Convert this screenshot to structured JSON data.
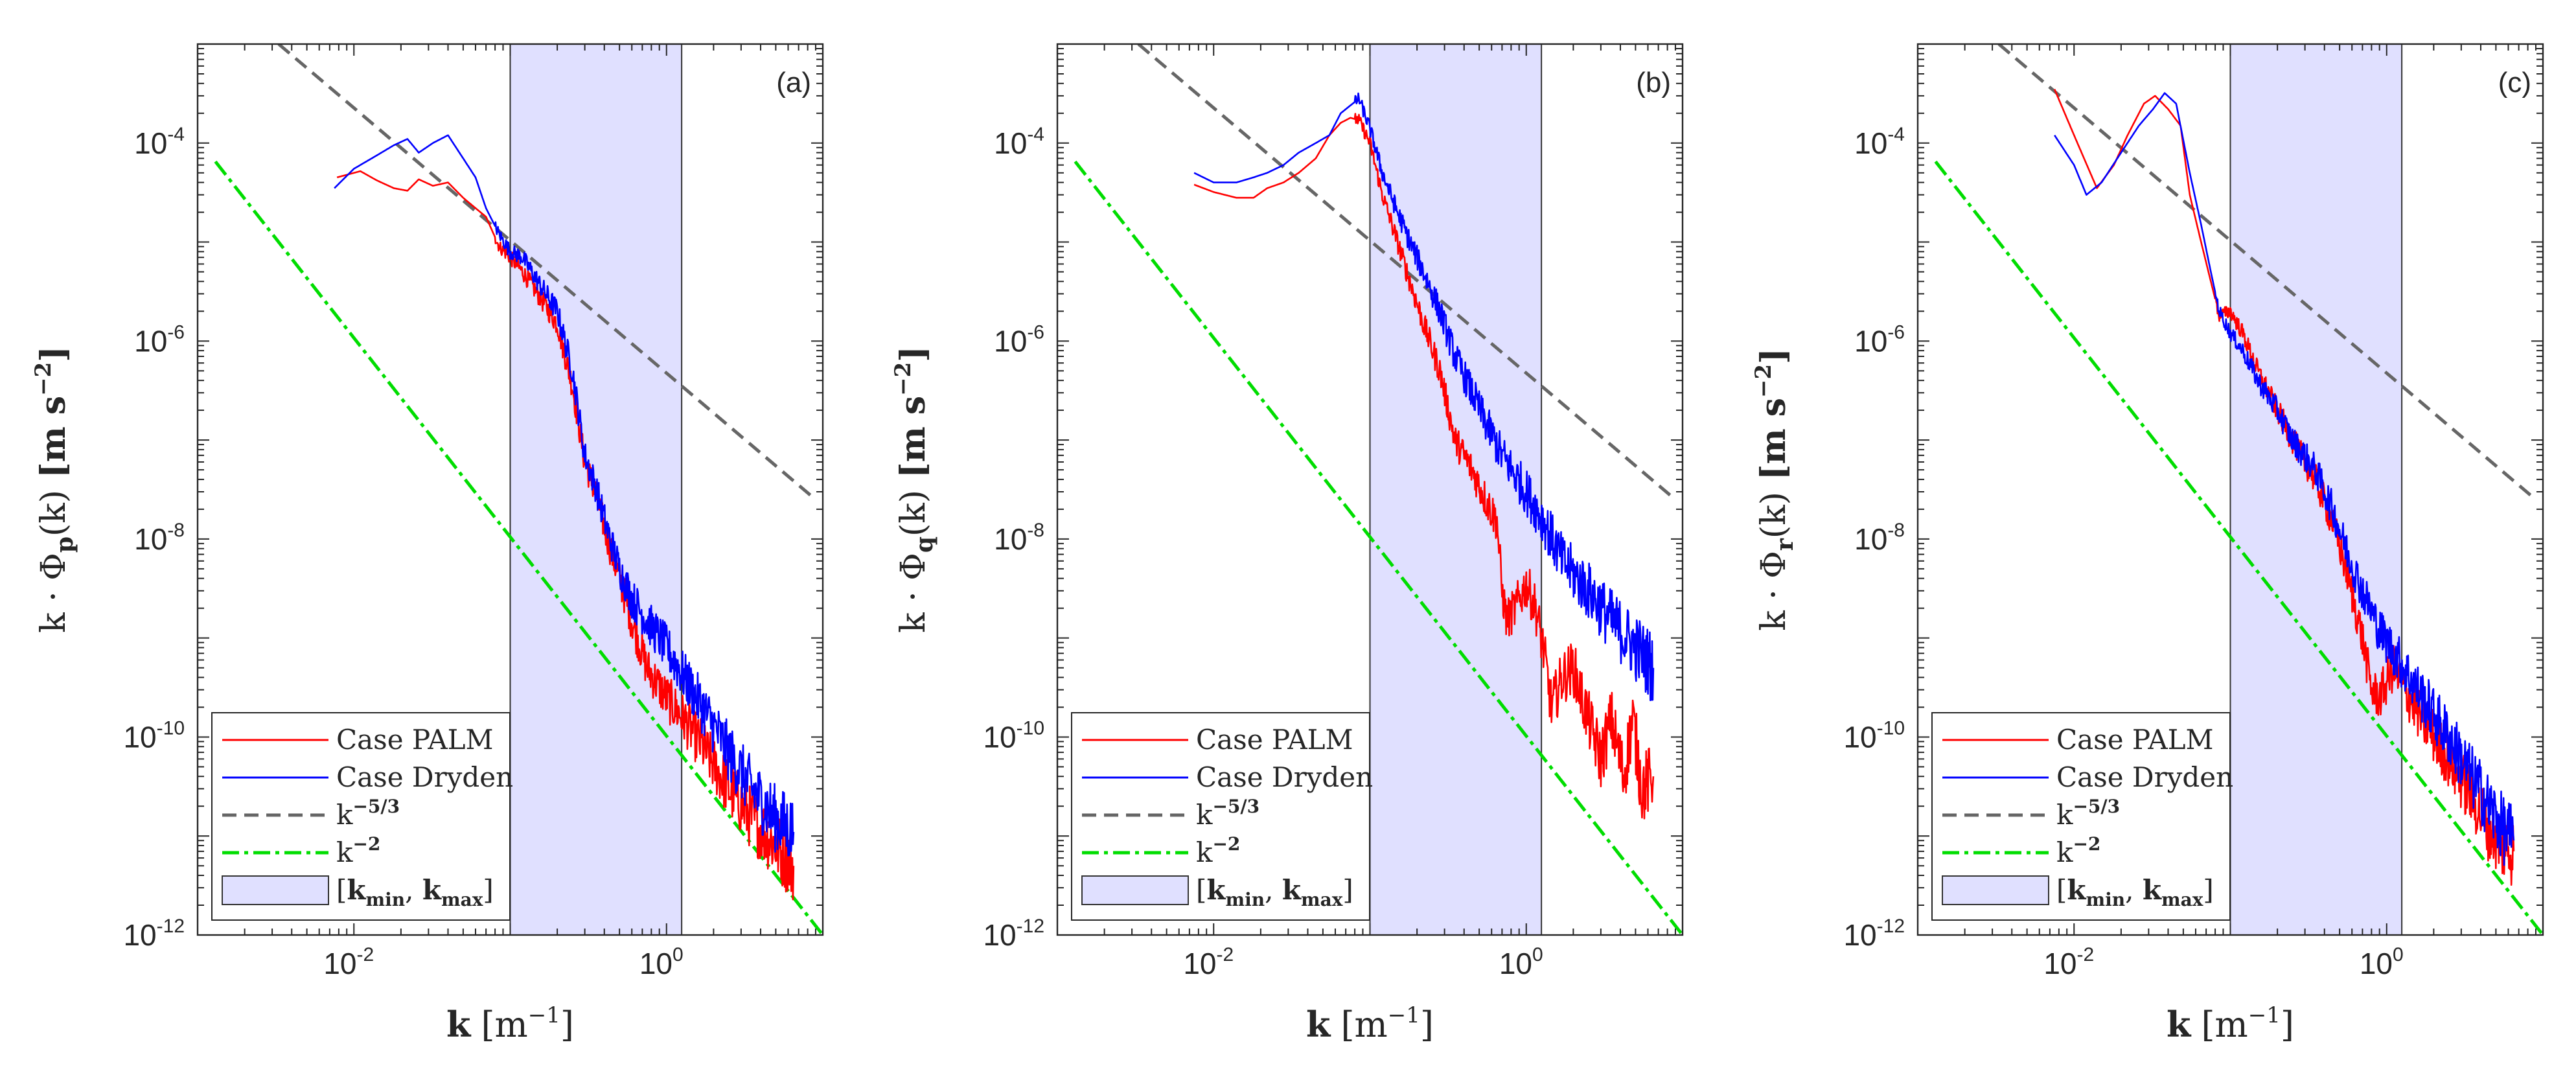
{
  "figure": {
    "panels": [
      {
        "label": "(a)",
        "ylabel_sub": "p"
      },
      {
        "label": "(b)",
        "ylabel_sub": "q"
      },
      {
        "label": "(c)",
        "ylabel_sub": "r"
      }
    ],
    "ylabel_prefix": "k · Φ",
    "ylabel_suffix": "(k)",
    "ylabel_units": "[m s",
    "ylabel_units_exp": "−2",
    "ylabel_units_close": "]",
    "xlabel": "k",
    "xlabel_units": "[m",
    "xlabel_units_exp": "−1",
    "xlabel_units_close": "]",
    "x_ticks": [
      {
        "base": "10",
        "exp": "-2",
        "value": 0.01
      },
      {
        "base": "10",
        "exp": "0",
        "value": 1
      }
    ],
    "y_ticks": [
      {
        "base": "10",
        "exp": "-4",
        "value": 0.0001
      },
      {
        "base": "10",
        "exp": "-6",
        "value": 1e-06
      },
      {
        "base": "10",
        "exp": "-8",
        "value": 1e-08
      },
      {
        "base": "10",
        "exp": "-10",
        "value": 1e-10
      },
      {
        "base": "10",
        "exp": "-12",
        "value": 1e-12
      }
    ],
    "legend": {
      "palm": "Case PALM",
      "dryden": "Case Dryden",
      "k53": "k",
      "k53_exp": "−5/3",
      "k2": "k",
      "k2_exp": "−2",
      "band_open": "[",
      "band_kmin": "k",
      "band_kmin_sub": "min",
      "band_sep": ", ",
      "band_kmax": "k",
      "band_kmax_sub": "max",
      "band_close": "]"
    },
    "colors": {
      "palm": "#ff0000",
      "dryden": "#0000ff",
      "k53": "#666666",
      "k2": "#00dd00",
      "band_fill": "#e0e0ff",
      "band_edge": "#333333",
      "axes": "#262626"
    }
  },
  "chart_data": [
    {
      "type": "line",
      "title": "(a)",
      "xlabel": "k [m^-1]",
      "ylabel": "k · Φ_p(k) [m s^-2]",
      "xscale": "log",
      "yscale": "log",
      "xlim": [
        0.001,
        10
      ],
      "ylim": [
        1e-12,
        0.001
      ],
      "band": [
        0.1,
        1.25
      ],
      "reference_lines": [
        {
          "name": "k^-5/3",
          "points": [
            [
              0.0033,
              0.001
            ],
            [
              9,
              2.5e-08
            ]
          ]
        },
        {
          "name": "k^-2",
          "points": [
            [
              0.0013,
              6.5e-05
            ],
            [
              10,
              1e-12
            ]
          ]
        }
      ],
      "series": [
        {
          "name": "Case PALM",
          "points": [
            [
              0.0078,
              4.5e-05
            ],
            [
              0.011,
              5.2e-05
            ],
            [
              0.014,
              4.2e-05
            ],
            [
              0.018,
              3.5e-05
            ],
            [
              0.022,
              3.3e-05
            ],
            [
              0.026,
              4.3e-05
            ],
            [
              0.032,
              3.7e-05
            ],
            [
              0.04,
              4e-05
            ],
            [
              0.05,
              2.8e-05
            ],
            [
              0.06,
              2.2e-05
            ],
            [
              0.07,
              1.8e-05
            ],
            [
              0.085,
              9e-06
            ],
            [
              0.1,
              7e-06
            ],
            [
              0.12,
              5e-06
            ],
            [
              0.15,
              3e-06
            ],
            [
              0.2,
              1.5e-06
            ],
            [
              0.25,
              3.5e-07
            ],
            [
              0.3,
              6e-08
            ],
            [
              0.35,
              3e-08
            ],
            [
              0.42,
              1e-08
            ],
            [
              0.5,
              4e-09
            ],
            [
              0.6,
              1.5e-09
            ],
            [
              0.75,
              5e-10
            ],
            [
              1.0,
              2.5e-10
            ],
            [
              1.3,
              1.5e-10
            ],
            [
              1.7,
              8e-11
            ],
            [
              2.5,
              3e-11
            ],
            [
              3.5,
              1.5e-11
            ],
            [
              5.0,
              8e-12
            ],
            [
              6.5,
              5e-12
            ]
          ]
        },
        {
          "name": "Case Dryden",
          "points": [
            [
              0.0075,
              3.5e-05
            ],
            [
              0.01,
              5.5e-05
            ],
            [
              0.014,
              7.5e-05
            ],
            [
              0.018,
              9.5e-05
            ],
            [
              0.022,
              0.00011
            ],
            [
              0.026,
              8e-05
            ],
            [
              0.032,
              0.0001
            ],
            [
              0.04,
              0.00012
            ],
            [
              0.05,
              7e-05
            ],
            [
              0.06,
              4.5e-05
            ],
            [
              0.07,
              2.2e-05
            ],
            [
              0.085,
              1.2e-05
            ],
            [
              0.1,
              8e-06
            ],
            [
              0.12,
              7e-06
            ],
            [
              0.15,
              4e-06
            ],
            [
              0.2,
              2e-06
            ],
            [
              0.25,
              5e-07
            ],
            [
              0.3,
              7e-08
            ],
            [
              0.35,
              3.5e-08
            ],
            [
              0.42,
              1.2e-08
            ],
            [
              0.5,
              5e-09
            ],
            [
              0.6,
              2.5e-09
            ],
            [
              0.75,
              1.5e-09
            ],
            [
              1.0,
              8e-10
            ],
            [
              1.3,
              4e-10
            ],
            [
              1.7,
              2e-10
            ],
            [
              2.5,
              7e-11
            ],
            [
              3.5,
              3e-11
            ],
            [
              5.0,
              1.5e-11
            ],
            [
              6.5,
              1.1e-11
            ]
          ]
        }
      ]
    },
    {
      "type": "line",
      "title": "(b)",
      "xlabel": "k [m^-1]",
      "ylabel": "k · Φ_q(k) [m s^-2]",
      "xscale": "log",
      "yscale": "log",
      "xlim": [
        0.001,
        10
      ],
      "ylim": [
        1e-12,
        0.001
      ],
      "band": [
        0.1,
        1.25
      ],
      "reference_lines": [
        {
          "name": "k^-5/3",
          "points": [
            [
              0.0033,
              0.001
            ],
            [
              9,
              2.5e-08
            ]
          ]
        },
        {
          "name": "k^-2",
          "points": [
            [
              0.0013,
              6.5e-05
            ],
            [
              10,
              1e-12
            ]
          ]
        }
      ],
      "series": [
        {
          "name": "Case PALM",
          "points": [
            [
              0.0075,
              3.8e-05
            ],
            [
              0.01,
              3.2e-05
            ],
            [
              0.014,
              2.8e-05
            ],
            [
              0.018,
              2.8e-05
            ],
            [
              0.022,
              3.5e-05
            ],
            [
              0.028,
              4e-05
            ],
            [
              0.035,
              5e-05
            ],
            [
              0.045,
              7e-05
            ],
            [
              0.055,
              0.00012
            ],
            [
              0.065,
              0.00016
            ],
            [
              0.075,
              0.00018
            ],
            [
              0.085,
              0.00017
            ],
            [
              0.1,
              0.0001
            ],
            [
              0.12,
              3e-05
            ],
            [
              0.15,
              1e-05
            ],
            [
              0.18,
              4e-06
            ],
            [
              0.22,
              1.5e-06
            ],
            [
              0.28,
              5e-07
            ],
            [
              0.35,
              1e-07
            ],
            [
              0.45,
              5e-08
            ],
            [
              0.55,
              2.5e-08
            ],
            [
              0.65,
              1.5e-08
            ],
            [
              0.7,
              3e-09
            ],
            [
              0.75,
              1.5e-09
            ],
            [
              0.85,
              2e-09
            ],
            [
              1.0,
              3.5e-09
            ],
            [
              1.15,
              2e-09
            ],
            [
              1.3,
              7e-10
            ],
            [
              1.45,
              2e-10
            ],
            [
              1.7,
              4e-10
            ],
            [
              2.0,
              5e-10
            ],
            [
              2.5,
              1.5e-10
            ],
            [
              3.0,
              6e-11
            ],
            [
              3.5,
              1.5e-10
            ],
            [
              4.2,
              4e-11
            ],
            [
              4.8,
              1.5e-10
            ],
            [
              5.5,
              3e-11
            ],
            [
              6.5,
              4e-11
            ]
          ]
        },
        {
          "name": "Case Dryden",
          "points": [
            [
              0.0075,
              5e-05
            ],
            [
              0.01,
              4e-05
            ],
            [
              0.014,
              4e-05
            ],
            [
              0.018,
              4.5e-05
            ],
            [
              0.022,
              5e-05
            ],
            [
              0.028,
              6e-05
            ],
            [
              0.035,
              8e-05
            ],
            [
              0.045,
              0.0001
            ],
            [
              0.055,
              0.00012
            ],
            [
              0.065,
              0.0002
            ],
            [
              0.075,
              0.00024
            ],
            [
              0.085,
              0.00028
            ],
            [
              0.1,
              0.00014
            ],
            [
              0.12,
              5e-05
            ],
            [
              0.15,
              2e-05
            ],
            [
              0.18,
              1e-05
            ],
            [
              0.22,
              5e-06
            ],
            [
              0.28,
              2e-06
            ],
            [
              0.35,
              7e-07
            ],
            [
              0.45,
              3e-07
            ],
            [
              0.55,
              1.5e-07
            ],
            [
              0.7,
              7e-08
            ],
            [
              1.0,
              3e-08
            ],
            [
              1.3,
              1.5e-08
            ],
            [
              1.7,
              6e-09
            ],
            [
              2.5,
              3e-09
            ],
            [
              3.5,
              1.5e-09
            ],
            [
              5.0,
              8e-10
            ],
            [
              6.5,
              5e-10
            ]
          ]
        }
      ]
    },
    {
      "type": "line",
      "title": "(c)",
      "xlabel": "k [m^-1]",
      "ylabel": "k · Φ_r(k) [m s^-2]",
      "xscale": "log",
      "yscale": "log",
      "xlim": [
        0.001,
        10
      ],
      "ylim": [
        1e-12,
        0.001
      ],
      "band": [
        0.1,
        1.25
      ],
      "reference_lines": [
        {
          "name": "k^-5/3",
          "points": [
            [
              0.0033,
              0.001
            ],
            [
              9,
              2.5e-08
            ]
          ]
        },
        {
          "name": "k^-2",
          "points": [
            [
              0.0013,
              6.5e-05
            ],
            [
              10,
              1e-12
            ]
          ]
        }
      ],
      "series": [
        {
          "name": "Case PALM",
          "points": [
            [
              0.0075,
              0.00035
            ],
            [
              0.01,
              0.00012
            ],
            [
              0.014,
              3.5e-05
            ],
            [
              0.018,
              6e-05
            ],
            [
              0.022,
              0.00012
            ],
            [
              0.028,
              0.00025
            ],
            [
              0.033,
              0.0003
            ],
            [
              0.04,
              0.00022
            ],
            [
              0.048,
              0.00015
            ],
            [
              0.055,
              3e-05
            ],
            [
              0.065,
              1e-05
            ],
            [
              0.075,
              4e-06
            ],
            [
              0.085,
              1.8e-06
            ],
            [
              0.1,
              2e-06
            ],
            [
              0.12,
              1.2e-06
            ],
            [
              0.15,
              5e-07
            ],
            [
              0.2,
              2e-07
            ],
            [
              0.25,
              1e-07
            ],
            [
              0.35,
              4e-08
            ],
            [
              0.45,
              1.5e-08
            ],
            [
              0.55,
              5e-09
            ],
            [
              0.7,
              1e-09
            ],
            [
              0.8,
              3e-10
            ],
            [
              0.9,
              2.5e-10
            ],
            [
              1.1,
              5e-10
            ],
            [
              1.3,
              3e-10
            ],
            [
              1.7,
              1.5e-10
            ],
            [
              2.5,
              6e-11
            ],
            [
              3.5,
              2.5e-11
            ],
            [
              4.5,
              1.2e-11
            ],
            [
              5.5,
              8e-12
            ],
            [
              6.5,
              7e-12
            ]
          ]
        },
        {
          "name": "Case Dryden",
          "points": [
            [
              0.0075,
              0.00012
            ],
            [
              0.01,
              6e-05
            ],
            [
              0.012,
              3e-05
            ],
            [
              0.015,
              4e-05
            ],
            [
              0.02,
              8e-05
            ],
            [
              0.026,
              0.00015
            ],
            [
              0.032,
              0.00022
            ],
            [
              0.038,
              0.00032
            ],
            [
              0.045,
              0.00025
            ],
            [
              0.055,
              5e-05
            ],
            [
              0.065,
              1.5e-05
            ],
            [
              0.075,
              5e-06
            ],
            [
              0.085,
              2e-06
            ],
            [
              0.1,
              1.2e-06
            ],
            [
              0.12,
              8e-07
            ],
            [
              0.15,
              4e-07
            ],
            [
              0.2,
              2e-07
            ],
            [
              0.25,
              1e-07
            ],
            [
              0.35,
              5e-08
            ],
            [
              0.45,
              2e-08
            ],
            [
              0.55,
              8e-09
            ],
            [
              0.7,
              3e-09
            ],
            [
              0.9,
              1.2e-09
            ],
            [
              1.2,
              6e-10
            ],
            [
              1.7,
              2.5e-10
            ],
            [
              2.5,
              1e-10
            ],
            [
              3.5,
              4e-11
            ],
            [
              4.5,
              2e-11
            ],
            [
              5.5,
              1.2e-11
            ],
            [
              6.5,
              9e-12
            ]
          ]
        }
      ]
    }
  ]
}
